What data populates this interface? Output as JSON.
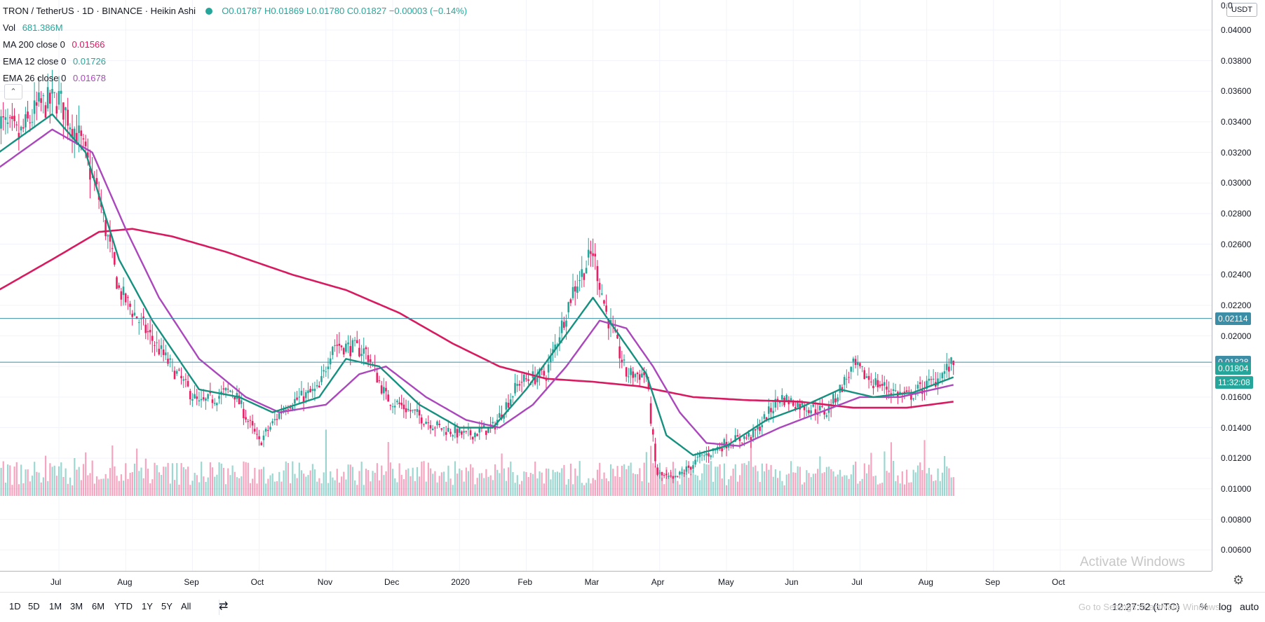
{
  "header": {
    "symbol": "TRON / TetherUS · 1D · BINANCE · Heikin Ashi",
    "ohlc": "O0.01787  H0.01869  L0.01780  C0.01827  −0.00003 (−0.14%)",
    "vol_label": "Vol",
    "vol_value": "681.386M",
    "ma200_label": "MA 200 close 0",
    "ma200_value": "0.01566",
    "ema12_label": "EMA 12 close 0",
    "ema12_value": "0.01726",
    "ema26_label": "EMA 26 close 0",
    "ema26_value": "0.01678",
    "collapse_icon": "chevron-up-icon"
  },
  "price_scale": {
    "currency": "USDT",
    "ticks": [
      "0.04000",
      "0.03800",
      "0.03600",
      "0.03400",
      "0.03200",
      "0.03000",
      "0.02800",
      "0.02600",
      "0.02400",
      "0.02200",
      "0.02000",
      "0.01800",
      "0.01600",
      "0.01400",
      "0.01200",
      "0.01000",
      "0.00800",
      "0.00600"
    ],
    "top_partial": "0.0",
    "tags": {
      "resistance": "0.02114",
      "support": "0.01828",
      "last": "0.01804",
      "countdown": "11:32:08"
    }
  },
  "time_axis": {
    "labels": [
      "Jul",
      "Aug",
      "Sep",
      "Oct",
      "Nov",
      "Dec",
      "2020",
      "Feb",
      "Mar",
      "Apr",
      "May",
      "Jun",
      "Jul",
      "Aug",
      "Sep",
      "Oct"
    ],
    "settings_icon": "gear-icon"
  },
  "bottom_bar": {
    "ranges": [
      "1D",
      "5D",
      "1M",
      "3M",
      "6M",
      "YTD",
      "1Y",
      "5Y",
      "All"
    ],
    "compare_icon": "calendar-range-icon",
    "clock": "12:27:52 (UTC)",
    "percent": "%",
    "log": "log",
    "auto": "auto"
  },
  "watermark": {
    "line1": "Activate Windows",
    "line2": "Go to Settings to activate Windows."
  },
  "colors": {
    "up": "#26a69a",
    "down": "#e91e63",
    "ma200": "#d81b60",
    "ema12": "#16907f",
    "ema26": "#ab47bc",
    "hline": "#3b8ea5"
  },
  "chart_data": {
    "type": "candlestick",
    "y_range": [
      0.005,
      0.0416
    ],
    "x_months": [
      "Jul",
      "Aug",
      "Sep",
      "Oct",
      "Nov",
      "Dec",
      "2020",
      "Feb",
      "Mar",
      "Apr",
      "May",
      "Jun",
      "Jul"
    ],
    "horizontal_lines": [
      0.02114,
      0.01828
    ],
    "close_anchor": [
      [
        0,
        0.034
      ],
      [
        0.3,
        0.033
      ],
      [
        0.6,
        0.035
      ],
      [
        0.9,
        0.0355
      ],
      [
        1.2,
        0.033
      ],
      [
        1.5,
        0.029
      ],
      [
        1.8,
        0.023
      ],
      [
        2.1,
        0.021
      ],
      [
        2.5,
        0.0185
      ],
      [
        3.0,
        0.0155
      ],
      [
        3.5,
        0.0165
      ],
      [
        3.9,
        0.013
      ],
      [
        4.3,
        0.0155
      ],
      [
        4.8,
        0.0165
      ],
      [
        5.0,
        0.0195
      ],
      [
        5.5,
        0.019
      ],
      [
        5.8,
        0.016
      ],
      [
        6.2,
        0.015
      ],
      [
        6.6,
        0.014
      ],
      [
        7.0,
        0.0135
      ],
      [
        7.4,
        0.014
      ],
      [
        7.8,
        0.017
      ],
      [
        8.2,
        0.0175
      ],
      [
        8.6,
        0.023
      ],
      [
        8.9,
        0.0255
      ],
      [
        9.1,
        0.0215
      ],
      [
        9.4,
        0.0175
      ],
      [
        9.7,
        0.0175
      ],
      [
        9.85,
        0.011
      ],
      [
        10.1,
        0.0105
      ],
      [
        10.5,
        0.012
      ],
      [
        10.9,
        0.013
      ],
      [
        11.3,
        0.0135
      ],
      [
        11.7,
        0.016
      ],
      [
        12.0,
        0.0155
      ],
      [
        12.4,
        0.015
      ],
      [
        12.8,
        0.018
      ],
      [
        13.1,
        0.017
      ],
      [
        13.6,
        0.016
      ],
      [
        14.0,
        0.017
      ],
      [
        14.3,
        0.0182
      ]
    ],
    "ema12_anchor": [
      [
        0,
        0.032
      ],
      [
        0.8,
        0.0345
      ],
      [
        1.3,
        0.032
      ],
      [
        1.8,
        0.025
      ],
      [
        2.3,
        0.021
      ],
      [
        3.0,
        0.0165
      ],
      [
        3.6,
        0.016
      ],
      [
        4.1,
        0.015
      ],
      [
        4.8,
        0.016
      ],
      [
        5.2,
        0.0185
      ],
      [
        5.7,
        0.018
      ],
      [
        6.3,
        0.0155
      ],
      [
        6.9,
        0.014
      ],
      [
        7.4,
        0.014
      ],
      [
        7.9,
        0.0165
      ],
      [
        8.4,
        0.0195
      ],
      [
        8.9,
        0.0225
      ],
      [
        9.3,
        0.02
      ],
      [
        9.7,
        0.0175
      ],
      [
        10.0,
        0.0135
      ],
      [
        10.4,
        0.0122
      ],
      [
        10.9,
        0.0128
      ],
      [
        11.5,
        0.0145
      ],
      [
        12.0,
        0.0153
      ],
      [
        12.6,
        0.0165
      ],
      [
        13.1,
        0.016
      ],
      [
        13.7,
        0.0163
      ],
      [
        14.3,
        0.0173
      ]
    ],
    "ema26_anchor": [
      [
        0,
        0.031
      ],
      [
        0.8,
        0.0335
      ],
      [
        1.4,
        0.032
      ],
      [
        1.9,
        0.027
      ],
      [
        2.4,
        0.0225
      ],
      [
        3.0,
        0.0185
      ],
      [
        3.7,
        0.016
      ],
      [
        4.2,
        0.015
      ],
      [
        4.9,
        0.0155
      ],
      [
        5.4,
        0.0175
      ],
      [
        5.8,
        0.018
      ],
      [
        6.4,
        0.016
      ],
      [
        7.0,
        0.0145
      ],
      [
        7.5,
        0.014
      ],
      [
        8.0,
        0.0155
      ],
      [
        8.5,
        0.018
      ],
      [
        9.0,
        0.021
      ],
      [
        9.4,
        0.0205
      ],
      [
        9.8,
        0.018
      ],
      [
        10.2,
        0.015
      ],
      [
        10.6,
        0.013
      ],
      [
        11.1,
        0.0128
      ],
      [
        11.7,
        0.014
      ],
      [
        12.3,
        0.015
      ],
      [
        12.9,
        0.016
      ],
      [
        13.5,
        0.016
      ],
      [
        14.3,
        0.0168
      ]
    ],
    "ma200_anchor": [
      [
        0,
        0.023
      ],
      [
        0.8,
        0.025
      ],
      [
        1.5,
        0.0268
      ],
      [
        2.0,
        0.027
      ],
      [
        2.6,
        0.0265
      ],
      [
        3.4,
        0.0255
      ],
      [
        4.4,
        0.024
      ],
      [
        5.2,
        0.023
      ],
      [
        6.0,
        0.0215
      ],
      [
        6.8,
        0.0195
      ],
      [
        7.5,
        0.018
      ],
      [
        8.2,
        0.0172
      ],
      [
        8.9,
        0.017
      ],
      [
        9.6,
        0.0167
      ],
      [
        10.4,
        0.016
      ],
      [
        11.2,
        0.0158
      ],
      [
        12.0,
        0.0157
      ],
      [
        12.8,
        0.0153
      ],
      [
        13.6,
        0.0153
      ],
      [
        14.3,
        0.0157
      ]
    ]
  }
}
